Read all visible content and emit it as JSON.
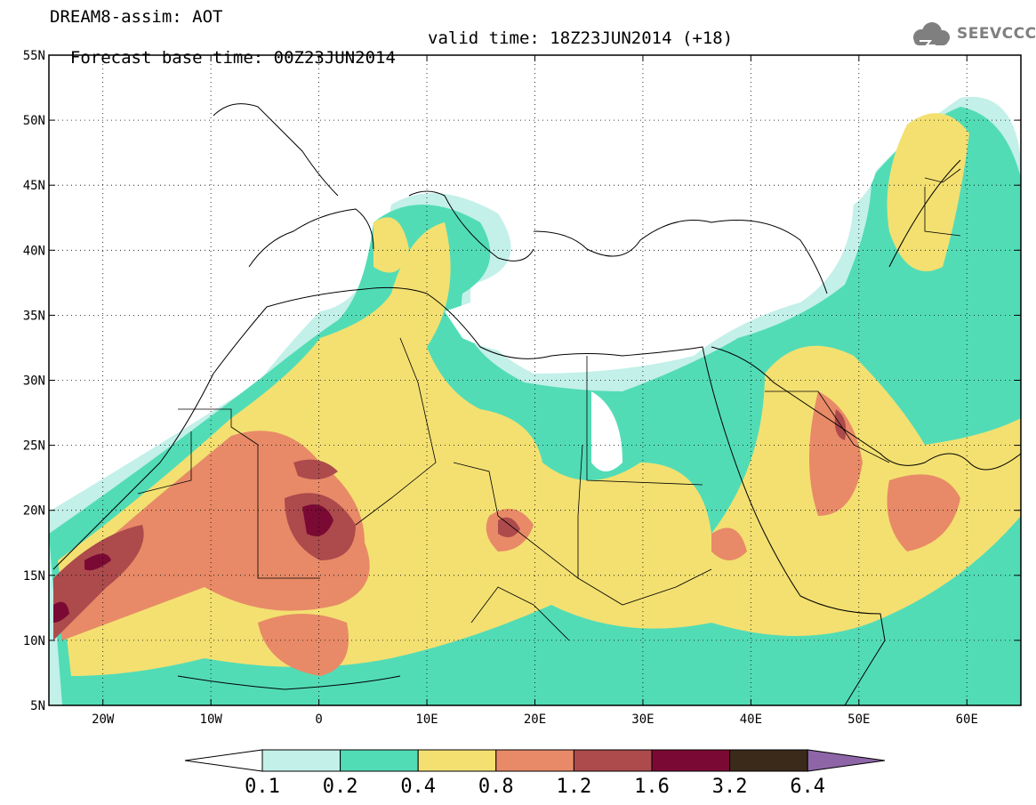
{
  "header": {
    "model_line": "DREAM8-assim: AOT",
    "base_time_line": "Forecast base time: 00Z23JUN2014",
    "valid_time_line": "valid time: 18Z23JUN2014 (+18)",
    "logo_text": "SEEVCCC"
  },
  "map": {
    "lon_range": [
      -25,
      65
    ],
    "lat_range": [
      5,
      55
    ],
    "lat_labels": [
      {
        "lat": 55,
        "text": "55N"
      },
      {
        "lat": 50,
        "text": "50N"
      },
      {
        "lat": 45,
        "text": "45N"
      },
      {
        "lat": 40,
        "text": "40N"
      },
      {
        "lat": 35,
        "text": "35N"
      },
      {
        "lat": 30,
        "text": "30N"
      },
      {
        "lat": 25,
        "text": "25N"
      },
      {
        "lat": 20,
        "text": "20N"
      },
      {
        "lat": 15,
        "text": "15N"
      },
      {
        "lat": 10,
        "text": "10N"
      },
      {
        "lat": 5,
        "text": "5N"
      }
    ],
    "lon_labels": [
      {
        "lon": -20,
        "text": "20W"
      },
      {
        "lon": -10,
        "text": "10W"
      },
      {
        "lon": 0,
        "text": "0"
      },
      {
        "lon": 10,
        "text": "10E"
      },
      {
        "lon": 20,
        "text": "20E"
      },
      {
        "lon": 30,
        "text": "30E"
      },
      {
        "lon": 40,
        "text": "40E"
      },
      {
        "lon": 50,
        "text": "50E"
      },
      {
        "lon": 60,
        "text": "60E"
      }
    ],
    "gridlines": "dotted",
    "field": "AOT"
  },
  "colorbar": {
    "labels": [
      "0.1",
      "0.2",
      "0.4",
      "0.8",
      "1.2",
      "1.6",
      "3.2",
      "6.4"
    ],
    "colors": {
      "below": "#ffffff",
      "bins": [
        "#c3f0e9",
        "#52dcb6",
        "#f3e071",
        "#e88a67",
        "#ac4a4c",
        "#7a0a33",
        "#3b2a1a"
      ],
      "above": "#8e66a8"
    }
  }
}
